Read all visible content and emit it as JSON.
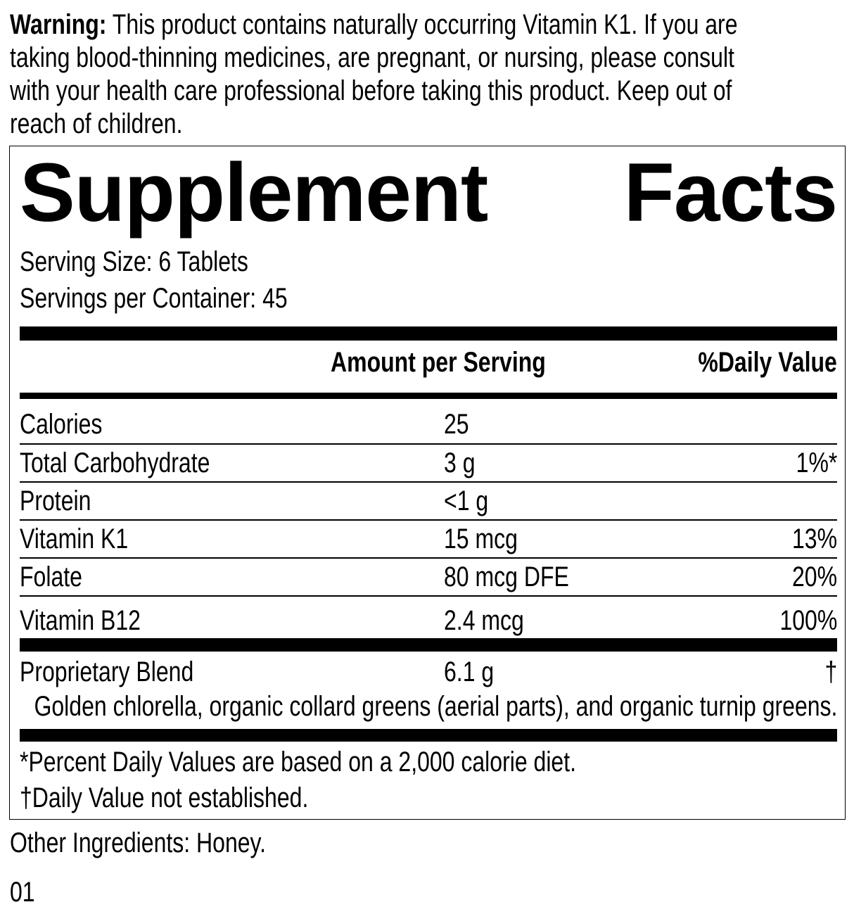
{
  "warning": {
    "label": "Warning:",
    "lines": [
      " This product contains naturally occurring Vitamin K1. If you are",
      "taking blood-thinning medicines, are pregnant, or nursing, please consult",
      "with your health care professional before taking this product. Keep out of",
      "reach of children."
    ]
  },
  "facts": {
    "title_word1": "Supplement",
    "title_word2": "Facts",
    "serving_size": "Serving Size: 6 Tablets",
    "servings_per_container": "Servings per Container: 45",
    "header_amount": "Amount per Serving",
    "header_dv": "%Daily Value",
    "rows": [
      {
        "name": "Calories",
        "amount": "25",
        "dv": ""
      },
      {
        "name": "Total Carbohydrate",
        "amount": "3 g",
        "dv": "1%*"
      },
      {
        "name": "Protein",
        "amount": "<1 g",
        "dv": ""
      },
      {
        "name": "Vitamin K1",
        "amount": "15 mcg",
        "dv": "13%"
      },
      {
        "name": "Folate",
        "amount": "80 mcg DFE",
        "dv": "20%"
      },
      {
        "name": "Vitamin B12",
        "amount": "2.4 mcg",
        "dv": "100%"
      }
    ],
    "blend": {
      "name": "Proprietary Blend",
      "amount": "6.1 g",
      "dv": "†",
      "ingredients": "Golden chlorella, organic collard greens (aerial parts), and organic turnip greens."
    },
    "footnote1": "*Percent Daily Values are based on a 2,000 calorie diet.",
    "footnote2": "†Daily Value not established."
  },
  "other_ingredients": "Other Ingredients: Honey.",
  "code": "01"
}
